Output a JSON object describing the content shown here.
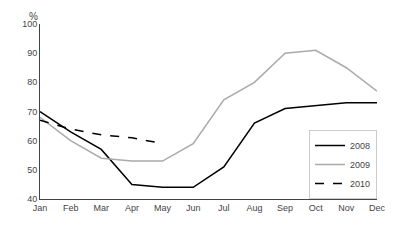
{
  "chart_data": {
    "type": "line",
    "y_label": "%",
    "categories": [
      "Jan",
      "Feb",
      "Mar",
      "Apr",
      "May",
      "Jun",
      "Jul",
      "Aug",
      "Sep",
      "Oct",
      "Nov",
      "Dec"
    ],
    "series": [
      {
        "name": "2008",
        "color": "#000000",
        "line_style": "solid",
        "values": [
          70,
          63,
          57,
          45,
          44,
          44,
          51,
          66,
          71,
          72,
          73,
          73
        ]
      },
      {
        "name": "2009",
        "color": "#aaaaaa",
        "line_style": "solid",
        "values": [
          68,
          60,
          54,
          53,
          53,
          59,
          74,
          80,
          90,
          91,
          85,
          77
        ]
      },
      {
        "name": "2010",
        "color": "#000000",
        "line_style": "dashed",
        "values": [
          67,
          64,
          62,
          61,
          59,
          null,
          null,
          null,
          null,
          null,
          null,
          null
        ]
      }
    ],
    "ylim": [
      40,
      100
    ],
    "yticks": [
      40,
      50,
      60,
      70,
      80,
      90,
      100
    ],
    "grid": false,
    "legend": "lower right"
  }
}
